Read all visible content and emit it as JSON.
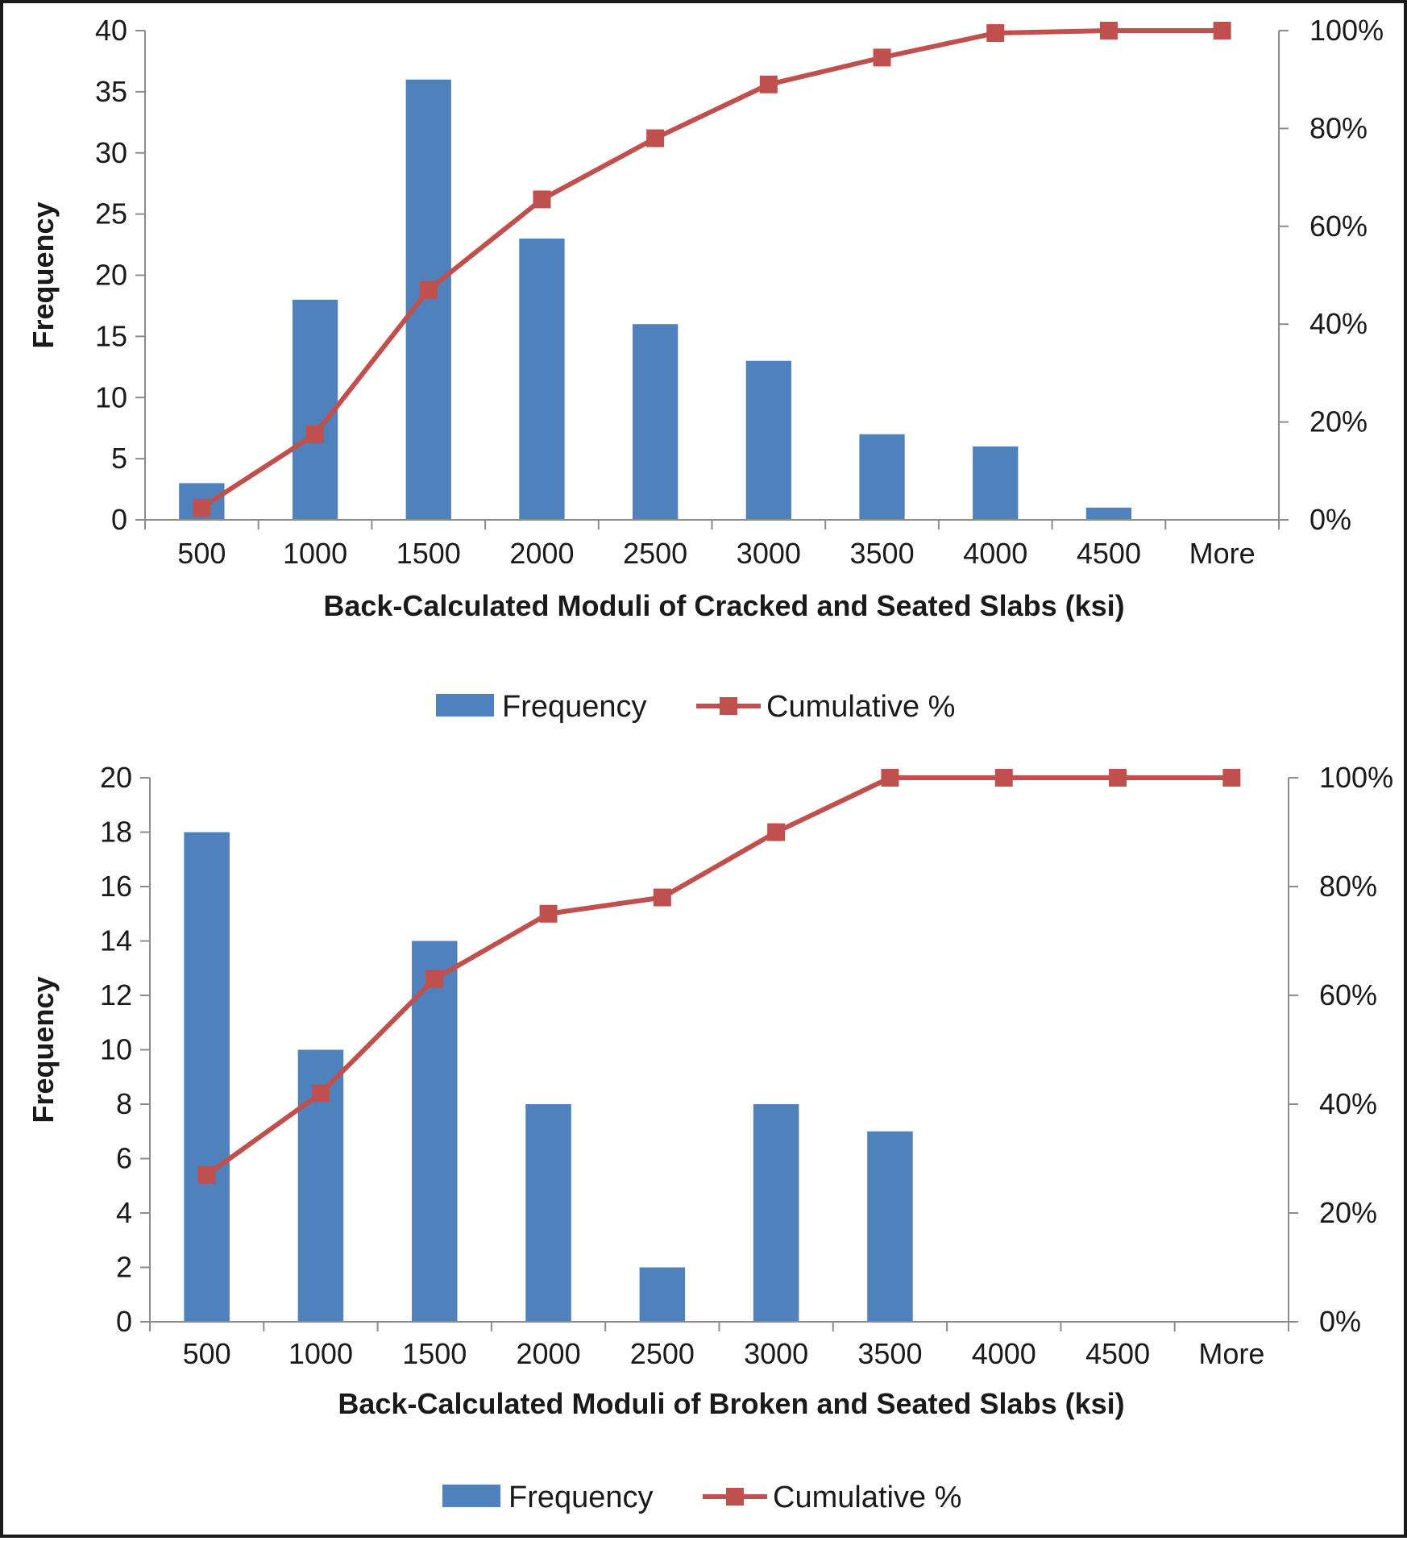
{
  "chart_data": [
    {
      "type": "bar",
      "categories": [
        "500",
        "1000",
        "1500",
        "2000",
        "2500",
        "3000",
        "3500",
        "4000",
        "4500",
        "More"
      ],
      "series": [
        {
          "name": "Frequency",
          "type": "bar",
          "axis": "left",
          "values": [
            3,
            18,
            36,
            23,
            16,
            13,
            7,
            6,
            1,
            0
          ]
        },
        {
          "name": "Cumulative %",
          "type": "line",
          "axis": "right",
          "marker": "square",
          "values": [
            2.5,
            17.5,
            47,
            65.5,
            78,
            89,
            94.5,
            99.5,
            100,
            100
          ]
        }
      ],
      "xlabel": "Back-Calculated Moduli of Cracked and Seated Slabs (ksi)",
      "ylabel": "Frequency",
      "ylim": [
        0,
        40
      ],
      "yticks": [
        "0",
        "5",
        "10",
        "15",
        "20",
        "25",
        "30",
        "35",
        "40"
      ],
      "y2lim": [
        0,
        100
      ],
      "y2ticks": [
        "0%",
        "20%",
        "40%",
        "60%",
        "80%",
        "100%"
      ],
      "legend": "bottom",
      "grid": false,
      "colors": {
        "bar": "#4f81bd",
        "line": "#c0504d"
      }
    },
    {
      "type": "bar",
      "categories": [
        "500",
        "1000",
        "1500",
        "2000",
        "2500",
        "3000",
        "3500",
        "4000",
        "4500",
        "More"
      ],
      "series": [
        {
          "name": "Frequency",
          "type": "bar",
          "axis": "left",
          "values": [
            18,
            10,
            14,
            8,
            2,
            8,
            7,
            0,
            0,
            0
          ]
        },
        {
          "name": "Cumulative %",
          "type": "line",
          "axis": "right",
          "marker": "square",
          "values": [
            27,
            42,
            63,
            75,
            78,
            90,
            100,
            100,
            100,
            100
          ]
        }
      ],
      "xlabel": "Back-Calculated Moduli of Broken and Seated Slabs (ksi)",
      "ylabel": "Frequency",
      "ylim": [
        0,
        20
      ],
      "yticks": [
        "0",
        "2",
        "4",
        "6",
        "8",
        "10",
        "12",
        "14",
        "16",
        "18",
        "20"
      ],
      "y2lim": [
        0,
        100
      ],
      "y2ticks": [
        "0%",
        "20%",
        "40%",
        "60%",
        "80%",
        "100%"
      ],
      "legend": "bottom",
      "grid": false,
      "colors": {
        "bar": "#4f81bd",
        "line": "#c0504d"
      }
    }
  ]
}
